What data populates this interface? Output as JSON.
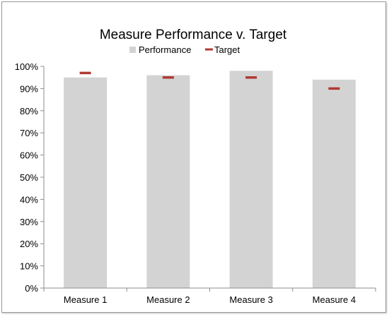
{
  "chart_data": {
    "type": "bar",
    "title": "Measure Performance v. Target",
    "categories": [
      "Measure 1",
      "Measure 2",
      "Measure 3",
      "Measure 4"
    ],
    "series": [
      {
        "name": "Performance",
        "values": [
          95,
          96,
          98,
          94
        ],
        "color": "#d3d3d3",
        "mark": "bar"
      },
      {
        "name": "Target",
        "values": [
          97,
          95,
          95,
          90
        ],
        "color": "#b03a34",
        "mark": "dash"
      }
    ],
    "ylim": [
      0,
      100
    ],
    "yticks": [
      0,
      10,
      20,
      30,
      40,
      50,
      60,
      70,
      80,
      90,
      100
    ],
    "ytick_labels": [
      "0%",
      "10%",
      "20%",
      "30%",
      "40%",
      "50%",
      "60%",
      "70%",
      "80%",
      "90%",
      "100%"
    ],
    "xlabel": "",
    "ylabel": "",
    "grid": false,
    "legend_position": "top-center"
  }
}
